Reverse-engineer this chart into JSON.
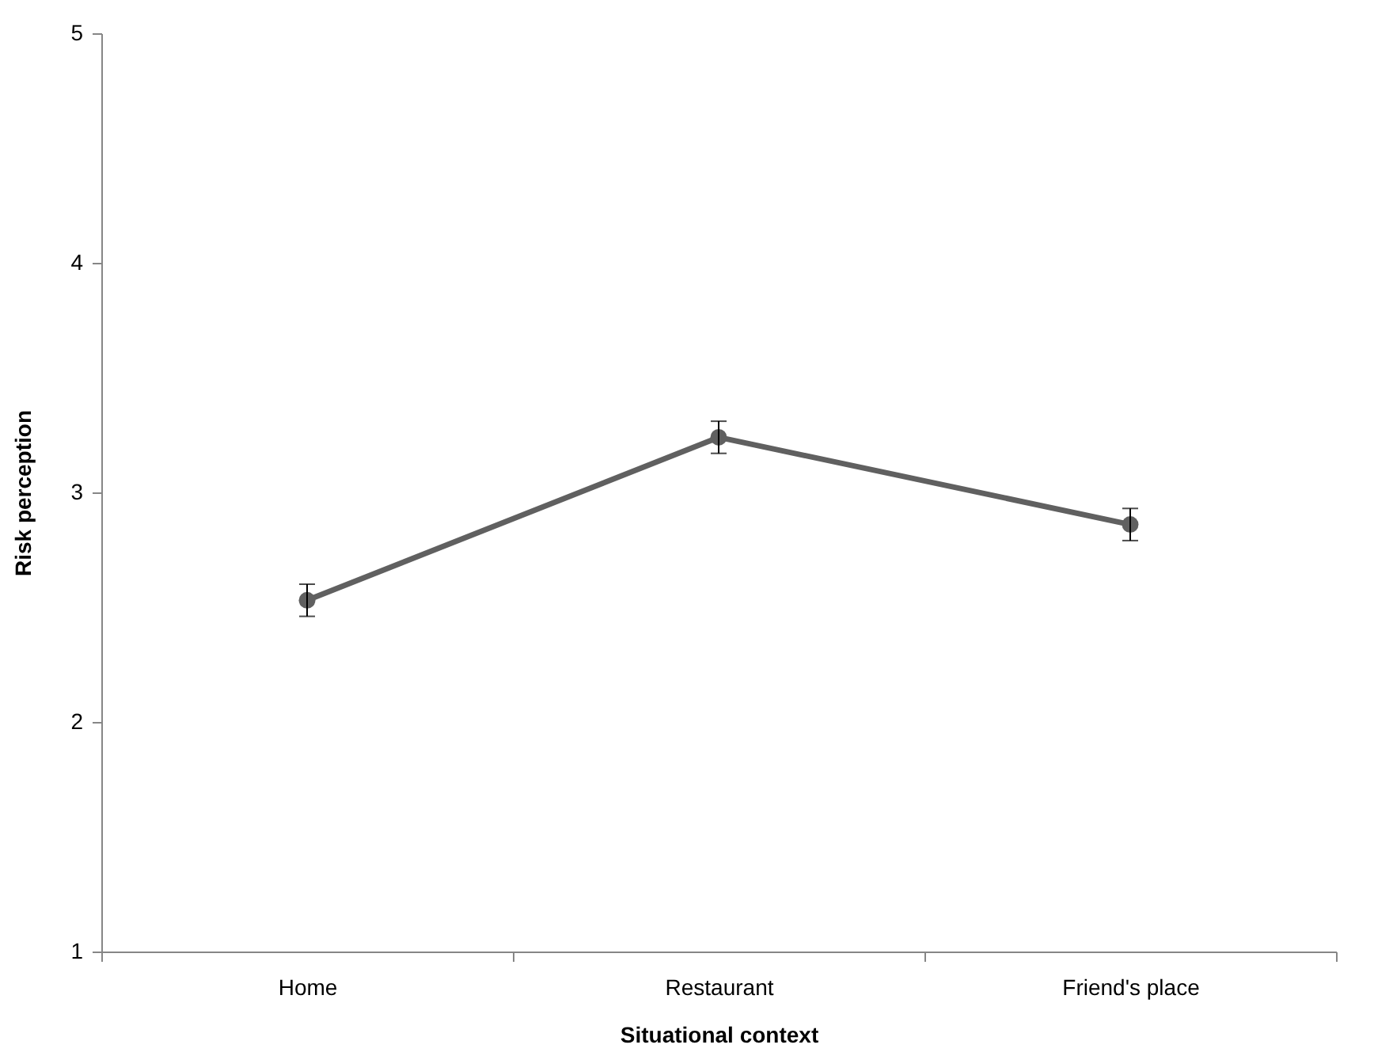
{
  "chart_data": {
    "type": "line",
    "xlabel": "Situational context",
    "ylabel": "Risk perception",
    "categories": [
      "Home",
      "Restaurant",
      "Friend's place"
    ],
    "series": [
      {
        "color": "#606060",
        "values": [
          2.53,
          3.24,
          2.86
        ],
        "errors": [
          0.07,
          0.07,
          0.07
        ]
      }
    ],
    "ylim": [
      1,
      5
    ],
    "yticks": [
      1,
      2,
      3,
      4,
      5
    ],
    "grid": false,
    "marker": "circle",
    "line_style": "solid"
  }
}
